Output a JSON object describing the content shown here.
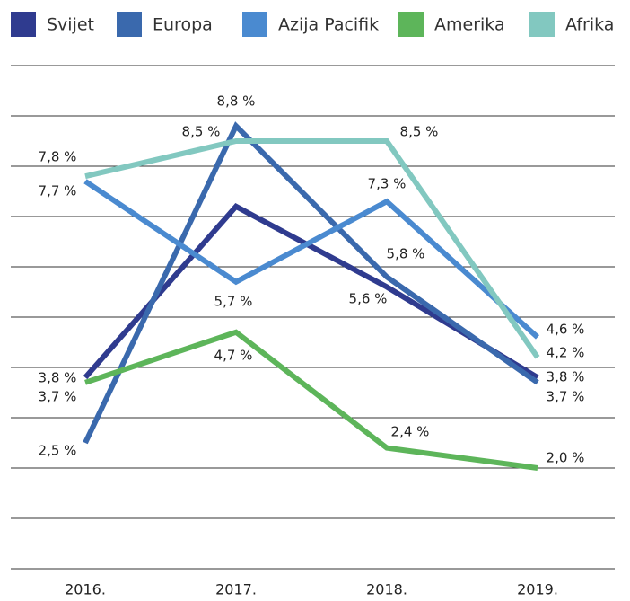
{
  "chart_data": {
    "type": "line",
    "categories": [
      "2016.",
      "2017.",
      "2018.",
      "2019."
    ],
    "ylim": [
      0,
      10
    ],
    "yticks": [
      0,
      1,
      2,
      3,
      4,
      5,
      6,
      7,
      8,
      9,
      10
    ],
    "grid": true,
    "legend": "top",
    "series": [
      {
        "name": "Svijet",
        "color": "#2f3b8f",
        "values": [
          3.8,
          7.2,
          5.6,
          3.8
        ],
        "value_labels": [
          "3,8 %",
          null,
          "5,6 %",
          "3,8 %"
        ]
      },
      {
        "name": "Europa",
        "color": "#3a69ad",
        "values": [
          2.5,
          8.8,
          5.8,
          3.7
        ],
        "value_labels": [
          "2,5 %",
          "8,8 %",
          "5,8 %",
          "3,7 %"
        ]
      },
      {
        "name": "Azija Pacifik",
        "color": "#4a8ad0",
        "values": [
          7.7,
          5.7,
          7.3,
          4.6
        ],
        "value_labels": [
          "7,7 %",
          "5,7 %",
          "7,3 %",
          "4,6 %"
        ]
      },
      {
        "name": "Amerika",
        "color": "#5db55a",
        "values": [
          3.7,
          4.7,
          2.4,
          2.0
        ],
        "value_labels": [
          "3,7 %",
          "4,7 %",
          "2,4 %",
          "2,0 %"
        ]
      },
      {
        "name": "Afrika",
        "color": "#82c8c0",
        "values": [
          7.8,
          8.5,
          8.5,
          4.2
        ],
        "value_labels": [
          "7,8 %",
          "8,5 %",
          "8,5 %",
          "4,2 %"
        ]
      }
    ]
  }
}
